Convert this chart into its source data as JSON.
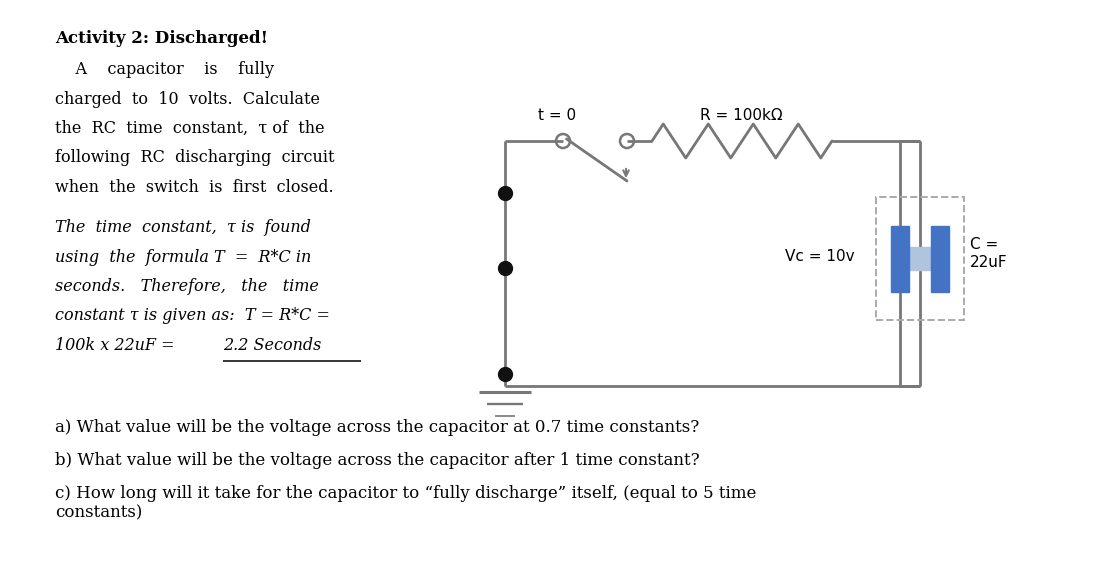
{
  "bg_color": "#ffffff",
  "text_color": "#000000",
  "fig_width": 10.94,
  "fig_height": 5.71,
  "bold_title": "Activity 2: Discharged!",
  "normal_lines": [
    "    A    capacitor    is    fully",
    "charged  to  10  volts.  Calculate",
    "the  RC  time  constant,  τ of  the",
    "following  RC  discharging  circuit",
    "when  the  switch  is  first  closed."
  ],
  "italic_lines": [
    "The  time  constant,  τ is  found",
    "using  the  formula T  =  R*C in",
    "seconds.   Therefore,   the   time",
    "constant τ is given as:  T = R*C =",
    "100k x 22uF = "
  ],
  "underline_text": "2.2 Seconds",
  "q_a": "a) What value will be the voltage across the capacitor at 0.7 time constants?",
  "q_b": "b) What value will be the voltage across the capacitor after 1 time constant?",
  "q_c": "c) How long will it take for the capacitor to “fully discharge” itself, (equal to 5 time\nconstants)",
  "lbl_t": "t = 0",
  "lbl_R": "R = 100kΩ",
  "lbl_Vc": "Vc = 10v",
  "lbl_C": "C =\n22uF",
  "wire_color": "#777777",
  "cap_color": "#4472c4",
  "dot_color": "#111111",
  "dash_color": "#aaaaaa"
}
